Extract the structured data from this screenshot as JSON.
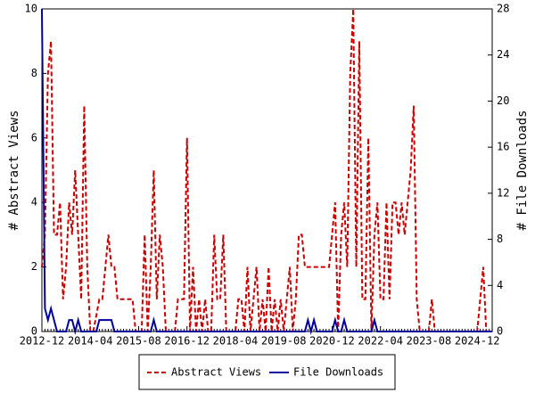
{
  "chart_data": {
    "type": "line",
    "categories": [
      "2012-12",
      null,
      null,
      null,
      null,
      null,
      null,
      null,
      null,
      null,
      null,
      null,
      null,
      null,
      null,
      null,
      "2014-04",
      null,
      null,
      null,
      null,
      null,
      null,
      null,
      null,
      null,
      null,
      null,
      null,
      null,
      null,
      null,
      "2015-08",
      null,
      null,
      null,
      null,
      null,
      null,
      null,
      null,
      null,
      null,
      null,
      null,
      null,
      null,
      null,
      "2016-12",
      null,
      null,
      null,
      null,
      null,
      null,
      null,
      null,
      null,
      null,
      null,
      null,
      null,
      null,
      null,
      "2018-04",
      null,
      null,
      null,
      null,
      null,
      null,
      null,
      null,
      null,
      null,
      null,
      null,
      null,
      null,
      null,
      "2019-08",
      null,
      null,
      null,
      null,
      null,
      null,
      null,
      null,
      null,
      null,
      null,
      null,
      null,
      null,
      null,
      "2020-12",
      null,
      null,
      null,
      null,
      null,
      null,
      null,
      null,
      null,
      null,
      null,
      null,
      null,
      null,
      null,
      "2022-04",
      null,
      null,
      null,
      null,
      null,
      null,
      null,
      null,
      null,
      null,
      null,
      null,
      null,
      null,
      null,
      "2023-08",
      null,
      null,
      null,
      null,
      null,
      null,
      null,
      null,
      null,
      null,
      null,
      null,
      null,
      null,
      null,
      "2024-12",
      null,
      null,
      null,
      null,
      null
    ],
    "series": [
      {
        "name": "Abstract Views",
        "color": "#cc0000",
        "axis": "y",
        "dash": true,
        "values": [
          2,
          3,
          8,
          9,
          3,
          3,
          4,
          1,
          2,
          4,
          3,
          5,
          3,
          1,
          7,
          2,
          0,
          0,
          0.5,
          1,
          1,
          2,
          3,
          2,
          2,
          1,
          1,
          1,
          1,
          1,
          1,
          0,
          0,
          0,
          3,
          0,
          2,
          5,
          1,
          3,
          2,
          0,
          0,
          0,
          0,
          1,
          1,
          1,
          6,
          0,
          2,
          0,
          1,
          0,
          1,
          0,
          0,
          3,
          1,
          1,
          3,
          0,
          0,
          0,
          0,
          1,
          1,
          0,
          2,
          0,
          1,
          2,
          0,
          1,
          0,
          2,
          0,
          1,
          0,
          1,
          0,
          1,
          2,
          0,
          1,
          3,
          3,
          2,
          2,
          2,
          2,
          2,
          2,
          2,
          2,
          2,
          3,
          4,
          0,
          3,
          4,
          2,
          8,
          10,
          2,
          9,
          1,
          1,
          6,
          0,
          3,
          4,
          1,
          1,
          4,
          1,
          4,
          4,
          3,
          4,
          3,
          4,
          5,
          7,
          1,
          0,
          0,
          0,
          0,
          1,
          0,
          0,
          0,
          0,
          0,
          0,
          0,
          0,
          0,
          0,
          0,
          0,
          0,
          0,
          0,
          1,
          2,
          0,
          0,
          0
        ]
      },
      {
        "name": "File Downloads",
        "color": "#00009c",
        "axis": "y2",
        "dash": false,
        "values": [
          28,
          2,
          1,
          2,
          1,
          0,
          0,
          0,
          0,
          1,
          1,
          0,
          1,
          0,
          0,
          0,
          0,
          0,
          0,
          1,
          1,
          1,
          1,
          1,
          0,
          0,
          0,
          0,
          0,
          0,
          0,
          0,
          0,
          0,
          0,
          0,
          0,
          1,
          0,
          0,
          0,
          0,
          0,
          0,
          0,
          0,
          0,
          0,
          0,
          0,
          0,
          0,
          0,
          0,
          0,
          0,
          0,
          0,
          0,
          0,
          0,
          0,
          0,
          0,
          0,
          0,
          0,
          0,
          0,
          0,
          0,
          0,
          0,
          0,
          0,
          0,
          0,
          0,
          0,
          0,
          0,
          0,
          0,
          0,
          0,
          0,
          0,
          0,
          1,
          0,
          1,
          0,
          0,
          0,
          0,
          0,
          0,
          1,
          0,
          0,
          1,
          0,
          0,
          0,
          0,
          0,
          0,
          0,
          0,
          0,
          1,
          0,
          0,
          0,
          0,
          0,
          0,
          0,
          0,
          0,
          0,
          0,
          0,
          0,
          0,
          0,
          0,
          0,
          0,
          0,
          0,
          0,
          0,
          0,
          0,
          0,
          0,
          0,
          0,
          0,
          0,
          0,
          0,
          0,
          0,
          0,
          0,
          0,
          0,
          0
        ]
      }
    ],
    "ylabel": "# Abstract Views",
    "y2label": "# File Downloads",
    "ylim": [
      0,
      10
    ],
    "yticks": [
      0,
      2,
      4,
      6,
      8,
      10
    ],
    "y2lim": [
      0,
      28
    ],
    "y2ticks": [
      0,
      4,
      8,
      12,
      16,
      20,
      24,
      28
    ],
    "legend": "bottom"
  }
}
